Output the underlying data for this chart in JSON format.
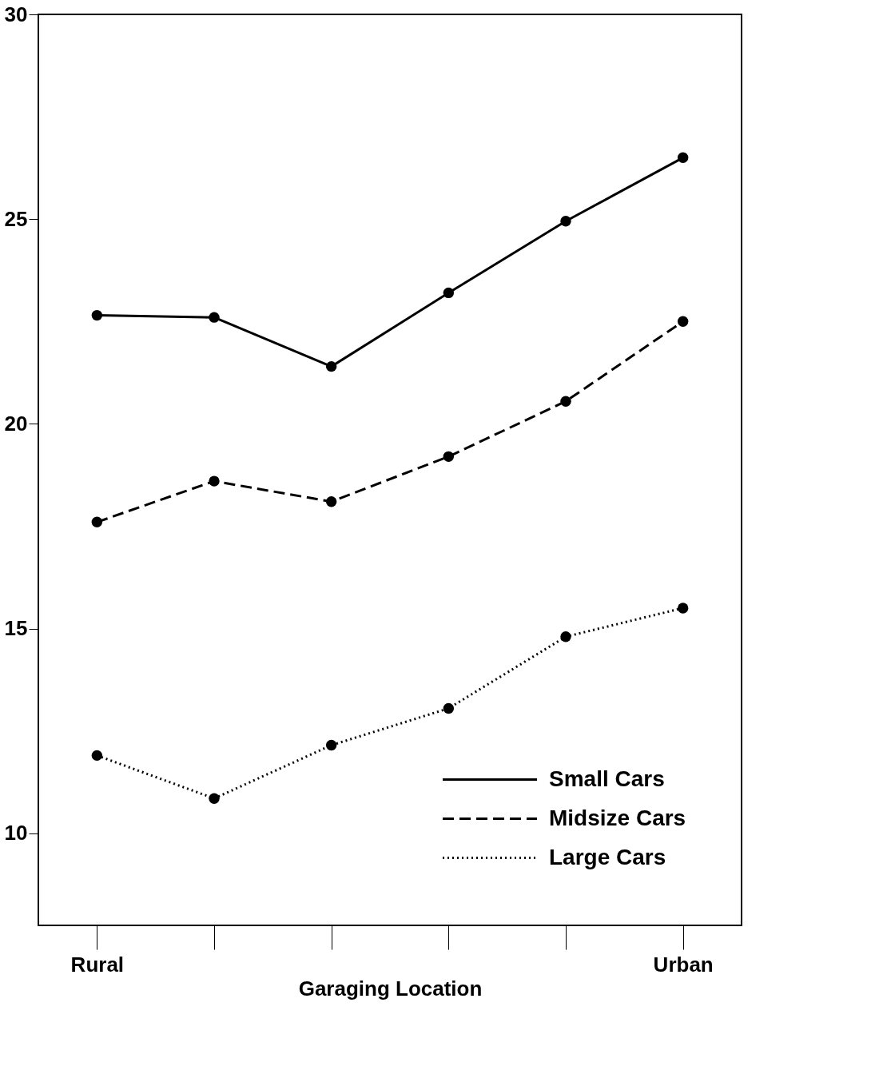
{
  "chart_data": {
    "type": "line",
    "xlabel": "Garaging Location",
    "categories": [
      "Rural",
      null,
      null,
      null,
      null,
      "Urban"
    ],
    "series": [
      {
        "name": "Small Cars",
        "color": "#000000",
        "line_style": "solid",
        "values": [
          22.65,
          22.6,
          21.4,
          23.2,
          24.95,
          26.5
        ]
      },
      {
        "name": "Midsize Cars",
        "color": "#000000",
        "line_style": "dashed",
        "values": [
          17.6,
          18.6,
          18.1,
          19.2,
          20.55,
          22.5
        ]
      },
      {
        "name": "Large Cars",
        "color": "#000000",
        "line_style": "dotted",
        "values": [
          11.9,
          10.85,
          12.15,
          13.05,
          14.8,
          15.5
        ]
      }
    ],
    "ylim": [
      7.75,
      30
    ],
    "yticks": [
      10,
      15,
      20,
      25,
      30
    ],
    "grid": false,
    "legend": "bottom right",
    "marker": "circle"
  }
}
